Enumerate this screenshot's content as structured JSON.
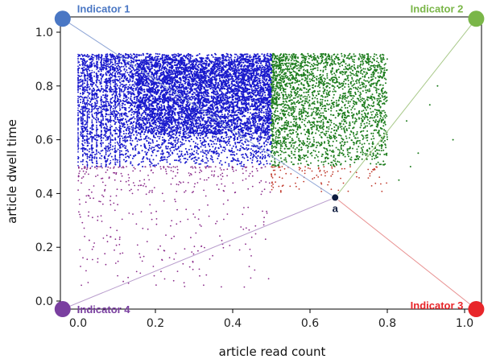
{
  "chart_data": {
    "type": "scatter",
    "title": "",
    "xlabel": "article read count",
    "ylabel": "article dwell time",
    "xlim": [
      -0.05,
      1.05
    ],
    "ylim": [
      -0.04,
      1.06
    ],
    "x_ticks": [
      "0.0",
      "0.2",
      "0.4",
      "0.6",
      "0.8",
      "1.0"
    ],
    "y_ticks": [
      "0.0",
      "0.2",
      "0.4",
      "0.6",
      "0.8",
      "1.0"
    ],
    "grid": false,
    "point_clouds": [
      {
        "color": "#1a1acc",
        "region": {
          "x": [
            0.0,
            0.5
          ],
          "y": [
            0.5,
            0.92
          ]
        },
        "density": "very high"
      },
      {
        "color": "#1e7d1e",
        "region": {
          "x": [
            0.5,
            0.8
          ],
          "y": [
            0.5,
            0.92
          ]
        },
        "density": "high"
      },
      {
        "color": "#8a2a8a",
        "region": {
          "x": [
            0.0,
            0.5
          ],
          "y": [
            0.05,
            0.5
          ]
        },
        "density": "sparse"
      },
      {
        "color": "#c0392b",
        "region": {
          "x": [
            0.5,
            0.8
          ],
          "y": [
            0.4,
            0.5
          ]
        },
        "density": "sparse"
      }
    ],
    "indicators": [
      {
        "label": "Indicator 1",
        "x": -0.04,
        "y": 1.05,
        "color": "#4a77c4",
        "line_color": "#8fa6d6"
      },
      {
        "label": "Indicator 2",
        "x": 1.03,
        "y": 1.05,
        "color": "#7ab648",
        "line_color": "#a9c98a"
      },
      {
        "label": "Indicator 3",
        "x": 1.03,
        "y": -0.03,
        "color": "#e8262a",
        "line_color": "#e89090"
      },
      {
        "label": "Indicator 4",
        "x": -0.04,
        "y": -0.03,
        "color": "#7a3fa0",
        "line_color": "#b89ccc"
      }
    ],
    "point_a": {
      "label": "a",
      "x": 0.665,
      "y": 0.385,
      "color": "#0d1b3e"
    }
  }
}
